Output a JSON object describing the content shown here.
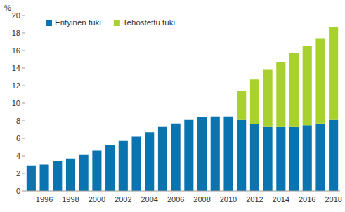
{
  "chart_data": {
    "type": "bar",
    "stacked": true,
    "ylabel": "%",
    "categories": [
      null,
      1996,
      null,
      1998,
      null,
      2000,
      null,
      2002,
      null,
      2004,
      null,
      2006,
      null,
      2008,
      null,
      2010,
      null,
      2012,
      null,
      2014,
      null,
      2016,
      null,
      2018
    ],
    "series": [
      {
        "name": "Erityinen tuki",
        "color": "#0a74b0",
        "values": [
          2.9,
          3.0,
          3.4,
          3.7,
          4.1,
          4.6,
          5.2,
          5.7,
          6.2,
          6.7,
          7.3,
          7.7,
          8.1,
          8.4,
          8.5,
          8.5,
          8.1,
          7.6,
          7.3,
          7.3,
          7.3,
          7.5,
          7.7,
          8.1
        ]
      },
      {
        "name": "Tehostettu tuki",
        "color": "#a8d12f",
        "values": [
          null,
          null,
          null,
          null,
          null,
          null,
          null,
          null,
          null,
          null,
          null,
          null,
          null,
          null,
          null,
          null,
          3.3,
          5.1,
          6.5,
          7.4,
          8.4,
          9.0,
          9.7,
          10.6
        ]
      }
    ],
    "ylim": [
      0,
      20
    ],
    "yticks": [
      0,
      2,
      4,
      6,
      8,
      10,
      12,
      14,
      16,
      18,
      20
    ],
    "grid": false,
    "legend": "top-left"
  }
}
